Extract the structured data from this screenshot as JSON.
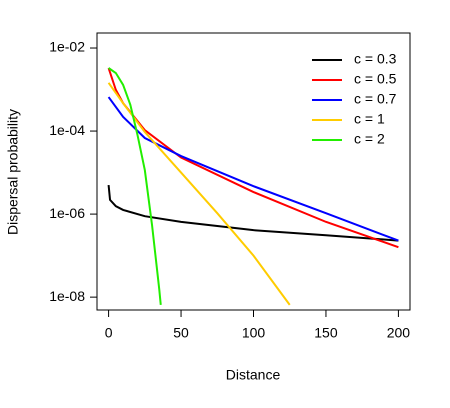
{
  "chart_data": {
    "type": "line",
    "xlabel": "Distance",
    "ylabel": "Dispersal probability",
    "xlim": [
      -8,
      208
    ],
    "xticks": [
      0,
      50,
      100,
      150,
      200
    ],
    "ylim": [
      4.9e-09,
      0.023
    ],
    "log_y": true,
    "yticks": [
      {
        "value": 0.01,
        "label": "1e-02"
      },
      {
        "value": 0.0001,
        "label": "1e-04"
      },
      {
        "value": 1e-06,
        "label": "1e-06"
      },
      {
        "value": 1e-08,
        "label": "1e-08"
      }
    ],
    "legend": "top-right",
    "series": [
      {
        "name": "c = 0.3",
        "color": "#000000",
        "x": [
          0,
          1,
          5,
          10,
          25,
          50,
          100,
          150,
          200
        ],
        "values": [
          5e-06,
          2.2e-06,
          1.55e-06,
          1.26e-06,
          8.9e-07,
          6.5e-07,
          4.1e-07,
          3.1e-07,
          2.3e-07
        ]
      },
      {
        "name": "c = 0.5",
        "color": "#ff0000",
        "x": [
          0,
          5,
          10,
          25,
          50,
          100,
          150,
          200
        ],
        "values": [
          0.0033,
          0.00098,
          0.00047,
          0.000105,
          2.3e-05,
          3.4e-06,
          6.5e-07,
          1.6e-07
        ]
      },
      {
        "name": "c = 0.7",
        "color": "#0000ff",
        "x": [
          0,
          10,
          25,
          50,
          100,
          150,
          200
        ],
        "values": [
          0.00066,
          0.00022,
          6.8e-05,
          2.5e-05,
          4.7e-06,
          1.05e-06,
          2.3e-07
        ]
      },
      {
        "name": "c = 1",
        "color": "#ffcc00",
        "x": [
          0,
          10,
          25,
          50,
          75,
          100,
          125
        ],
        "values": [
          0.00145,
          0.00047,
          9.5e-05,
          1e-05,
          1.05e-06,
          1e-07,
          6.5e-09
        ]
      },
      {
        "name": "c = 2",
        "color": "#22ee00",
        "x": [
          0,
          5,
          10,
          15,
          20,
          25,
          30,
          35,
          36
        ],
        "values": [
          0.0033,
          0.0025,
          0.0013,
          0.00043,
          7.9e-05,
          1.15e-05,
          5.4e-07,
          1.5e-08,
          6.5e-09
        ]
      }
    ]
  }
}
